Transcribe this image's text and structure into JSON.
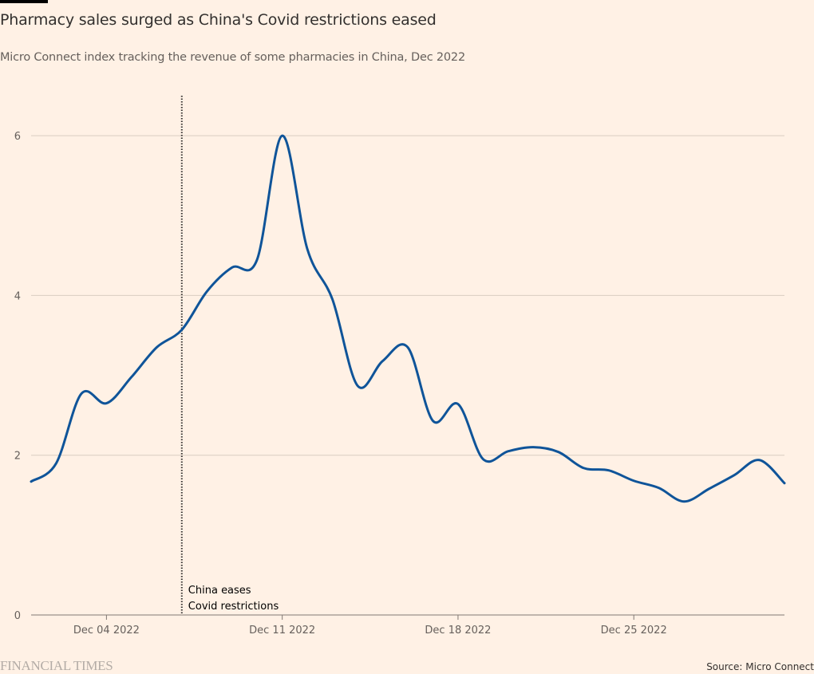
{
  "header": {
    "title": "Pharmacy sales surged as China's Covid restrictions eased",
    "subtitle": "Micro Connect index tracking the revenue of some pharmacies in China, Dec 2022"
  },
  "footer": {
    "logo": "FINANCIAL TIMES",
    "source": "Source: Micro Connect"
  },
  "colors": {
    "line": "#0f5499",
    "background": "#fff1e5",
    "grid": "#d9ccc1",
    "axis": "#807973",
    "annotation_line": "#33302e"
  },
  "chart_data": {
    "type": "line",
    "title": "Pharmacy sales surged as China's Covid restrictions eased",
    "subtitle": "Micro Connect index tracking the revenue of some pharmacies in China, Dec 2022",
    "xlabel": "",
    "ylabel": "",
    "x_range": [
      "2022-12-01",
      "2022-12-31"
    ],
    "ylim": [
      0,
      6.5
    ],
    "y_ticks": [
      0,
      2,
      4,
      6
    ],
    "y_tick_labels": [
      "0",
      "2",
      "4",
      "6"
    ],
    "x_ticks": [
      {
        "day": 4,
        "label": "Dec 04 2022"
      },
      {
        "day": 11,
        "label": "Dec 11 2022"
      },
      {
        "day": 18,
        "label": "Dec 18 2022"
      },
      {
        "day": 25,
        "label": "Dec 25 2022"
      }
    ],
    "grid": true,
    "legend": "none",
    "series": [
      {
        "name": "Micro Connect pharmacy revenue index",
        "x": [
          "Dec 01",
          "Dec 02",
          "Dec 03",
          "Dec 04",
          "Dec 05",
          "Dec 06",
          "Dec 07",
          "Dec 08",
          "Dec 09",
          "Dec 10",
          "Dec 11",
          "Dec 12",
          "Dec 13",
          "Dec 14",
          "Dec 15",
          "Dec 16",
          "Dec 17",
          "Dec 18",
          "Dec 19",
          "Dec 20",
          "Dec 21",
          "Dec 22",
          "Dec 23",
          "Dec 24",
          "Dec 25",
          "Dec 26",
          "Dec 27",
          "Dec 28",
          "Dec 29",
          "Dec 30",
          "Dec 31"
        ],
        "values": [
          1.67,
          1.9,
          2.77,
          2.65,
          2.98,
          3.35,
          3.57,
          4.05,
          4.35,
          4.45,
          6.0,
          4.58,
          3.95,
          2.87,
          3.18,
          3.35,
          2.43,
          2.64,
          1.95,
          2.05,
          2.1,
          2.04,
          1.84,
          1.81,
          1.68,
          1.59,
          1.42,
          1.58,
          1.75,
          1.94,
          1.65
        ]
      }
    ],
    "annotations": [
      {
        "day": 7,
        "lines": [
          "China eases",
          "Covid restrictions"
        ],
        "style": "dotted-vertical"
      }
    ]
  }
}
